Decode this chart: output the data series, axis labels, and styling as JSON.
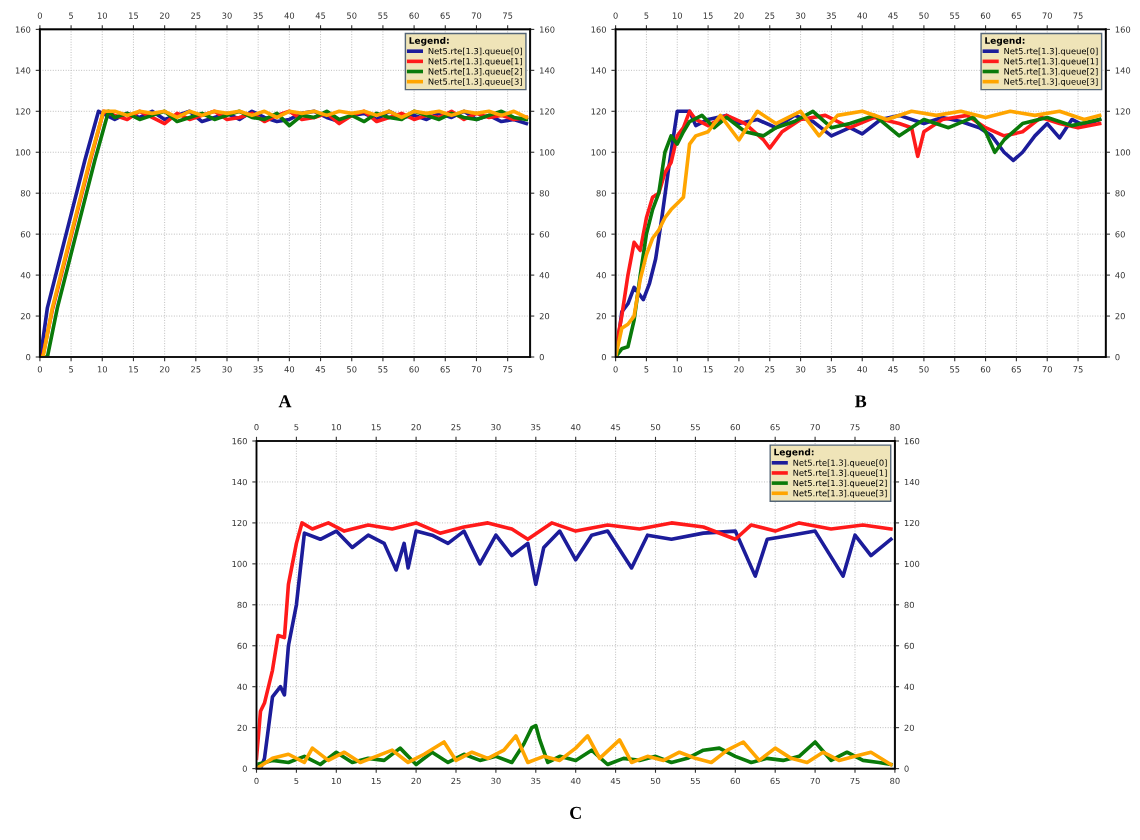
{
  "chart_data": [
    {
      "type": "line",
      "title": "A",
      "legend_title": "Legend:",
      "legend": "top right",
      "grid": true,
      "xlim": [
        0,
        78.6
      ],
      "xticks": [
        0,
        5,
        10,
        15,
        20,
        25,
        30,
        35,
        40,
        45,
        50,
        55,
        60,
        65,
        70,
        75
      ],
      "x2lim": [
        0,
        78.6
      ],
      "x2ticks": [
        0,
        5,
        10,
        15,
        20,
        25,
        30,
        35,
        40,
        45,
        50,
        55,
        60,
        65,
        70,
        75
      ],
      "ylim": [
        0,
        160
      ],
      "yticks": [
        0,
        20,
        40,
        60,
        80,
        100,
        120,
        140,
        160
      ],
      "y2lim": [
        0,
        160
      ],
      "y2ticks": [
        0,
        20,
        40,
        60,
        80,
        100,
        120,
        140,
        160
      ],
      "series": [
        {
          "name": "Net5.rte[1.3].queue[0]",
          "color": "#1c1c9a",
          "x": [
            0,
            0.1,
            1.2,
            3.2,
            5.2,
            7.2,
            9.4,
            12,
            14,
            16,
            18,
            20,
            22,
            24,
            26,
            28,
            30,
            32,
            34,
            36,
            38,
            40,
            42,
            44,
            46,
            48,
            50,
            52,
            54,
            56,
            58,
            60,
            62,
            64,
            66,
            68,
            70,
            72,
            74,
            76,
            78
          ],
          "values": [
            0,
            0,
            24,
            48,
            72,
            96,
            120,
            116,
            119,
            117,
            120,
            116,
            118,
            120,
            115,
            117,
            119,
            116,
            120,
            117,
            115,
            116,
            119,
            120,
            117,
            115,
            118,
            119,
            116,
            120,
            117,
            118,
            116,
            119,
            117,
            120,
            116,
            118,
            115,
            116,
            114
          ]
        },
        {
          "name": "Net5.rte[1.3].queue[1]",
          "color": "#ff1a1a",
          "x": [
            0,
            0.5,
            2,
            4,
            6,
            8,
            10.2,
            12,
            14,
            16,
            18,
            20,
            22,
            24,
            26,
            28,
            30,
            32,
            34,
            36,
            38,
            40,
            42,
            44,
            46,
            48,
            50,
            52,
            54,
            56,
            58,
            60,
            62,
            64,
            66,
            68,
            70,
            72,
            74,
            76,
            78
          ],
          "values": [
            0,
            1,
            23,
            47,
            71,
            95,
            120,
            118,
            116,
            120,
            117,
            114,
            119,
            116,
            118,
            120,
            116,
            117,
            119,
            115,
            118,
            120,
            116,
            117,
            119,
            114,
            118,
            120,
            115,
            117,
            119,
            116,
            118,
            117,
            120,
            116,
            119,
            117,
            118,
            116,
            117
          ]
        },
        {
          "name": "Net5.rte[1.3].queue[2]",
          "color": "#0a7a0a",
          "x": [
            0,
            1.2,
            2.8,
            4.8,
            6.8,
            8.8,
            11,
            12,
            14,
            16,
            18,
            20,
            22,
            24,
            26,
            28,
            30,
            32,
            34,
            36,
            38,
            40,
            42,
            44,
            46,
            48,
            50,
            52,
            54,
            56,
            58,
            60,
            62,
            64,
            66,
            68,
            70,
            72,
            74,
            76,
            78
          ],
          "values": [
            0,
            0,
            24,
            48,
            72,
            96,
            120,
            117,
            119,
            116,
            118,
            120,
            115,
            117,
            119,
            116,
            118,
            120,
            117,
            116,
            119,
            113,
            118,
            117,
            120,
            116,
            118,
            115,
            119,
            117,
            116,
            120,
            118,
            116,
            119,
            117,
            116,
            118,
            120,
            117,
            116
          ]
        },
        {
          "name": "Net5.rte[1.3].queue[3]",
          "color": "#ffa500",
          "x": [
            0,
            0.5,
            2,
            4,
            6,
            8,
            10.2,
            12,
            14,
            16,
            18,
            20,
            22,
            24,
            26,
            28,
            30,
            32,
            34,
            36,
            38,
            40,
            42,
            44,
            46,
            48,
            50,
            52,
            54,
            56,
            58,
            60,
            62,
            64,
            66,
            68,
            70,
            72,
            74,
            76,
            78
          ],
          "values": [
            0,
            0,
            24,
            48,
            72,
            96,
            120,
            120,
            118,
            120,
            119,
            120,
            117,
            120,
            118,
            120,
            119,
            120,
            118,
            120,
            117,
            120,
            119,
            120,
            118,
            120,
            119,
            120,
            118,
            120,
            117,
            120,
            119,
            120,
            118,
            120,
            119,
            120,
            118,
            120,
            117
          ]
        }
      ]
    },
    {
      "type": "line",
      "title": "B",
      "legend_title": "Legend:",
      "legend": "top right",
      "grid": true,
      "xlim": [
        0,
        79.5
      ],
      "xticks": [
        0,
        5,
        10,
        15,
        20,
        25,
        30,
        35,
        40,
        45,
        50,
        55,
        60,
        65,
        70,
        75
      ],
      "x2lim": [
        0,
        79.5
      ],
      "x2ticks": [
        0,
        5,
        10,
        15,
        20,
        25,
        30,
        35,
        40,
        45,
        50,
        55,
        60,
        65,
        70,
        75
      ],
      "ylim": [
        0,
        160
      ],
      "yticks": [
        0,
        20,
        40,
        60,
        80,
        100,
        120,
        140,
        160
      ],
      "y2lim": [
        0,
        160
      ],
      "y2ticks": [
        0,
        20,
        40,
        60,
        80,
        100,
        120,
        140,
        160
      ],
      "series": [
        {
          "name": "Net5.rte[1.3].queue[0]",
          "color": "#1c1c9a",
          "x": [
            0,
            0.5,
            1,
            2,
            3,
            4,
            4.5,
            5.5,
            6.5,
            7.5,
            8.5,
            9.5,
            10,
            12,
            13,
            15,
            18,
            20,
            23,
            26,
            29,
            32,
            35,
            38,
            40,
            43,
            46,
            50,
            53,
            56,
            59,
            61,
            63,
            64.5,
            66,
            68,
            70,
            72,
            74,
            76,
            78.5
          ],
          "values": [
            0,
            10,
            22,
            26,
            34,
            30,
            28,
            36,
            48,
            68,
            90,
            110,
            120,
            120,
            113,
            116,
            118,
            114,
            116,
            112,
            118,
            115,
            108,
            112,
            109,
            116,
            118,
            114,
            117,
            115,
            112,
            108,
            100,
            96,
            100,
            108,
            114,
            107,
            116,
            113,
            116
          ]
        },
        {
          "name": "Net5.rte[1.3].queue[1]",
          "color": "#ff1a1a",
          "x": [
            0,
            0.5,
            1,
            2,
            3,
            4,
            5,
            6,
            7,
            8,
            9,
            10,
            11,
            12,
            13,
            15,
            18,
            21,
            24,
            25,
            27,
            30,
            34,
            38,
            42,
            46,
            48,
            49,
            50,
            53,
            57,
            60,
            63,
            66,
            69,
            72,
            75,
            78.5
          ],
          "values": [
            0,
            12,
            20,
            40,
            56,
            52,
            68,
            78,
            80,
            90,
            95,
            108,
            112,
            120,
            116,
            113,
            118,
            114,
            106,
            102,
            110,
            116,
            118,
            112,
            117,
            114,
            112,
            98,
            110,
            116,
            118,
            112,
            108,
            110,
            117,
            114,
            112,
            114
          ]
        },
        {
          "name": "Net5.rte[1.3].queue[2]",
          "color": "#0a7a0a",
          "x": [
            0,
            1,
            2,
            3,
            4,
            5,
            6,
            7,
            8,
            9,
            10,
            11,
            12,
            14,
            16,
            18,
            21,
            24,
            26,
            29,
            32,
            35,
            38,
            42,
            46,
            50,
            54,
            58,
            60,
            61.5,
            63,
            66,
            70,
            74,
            78.5
          ],
          "values": [
            0,
            4,
            5,
            18,
            40,
            60,
            72,
            80,
            100,
            108,
            104,
            110,
            115,
            118,
            112,
            117,
            110,
            108,
            112,
            115,
            120,
            112,
            114,
            118,
            108,
            116,
            112,
            117,
            110,
            100,
            106,
            114,
            117,
            113,
            116
          ]
        },
        {
          "name": "Net5.rte[1.3].queue[3]",
          "color": "#ffa500",
          "x": [
            0,
            1,
            2,
            3,
            4,
            5,
            6,
            7,
            8,
            9,
            10,
            11,
            12,
            13,
            15,
            17,
            20,
            23,
            26,
            30,
            33,
            36,
            40,
            44,
            48,
            52,
            56,
            60,
            64,
            68,
            72,
            76,
            78.5
          ],
          "values": [
            0,
            14,
            16,
            20,
            38,
            50,
            58,
            62,
            68,
            72,
            75,
            78,
            104,
            108,
            110,
            118,
            106,
            120,
            114,
            120,
            108,
            118,
            120,
            116,
            120,
            118,
            120,
            117,
            120,
            118,
            120,
            116,
            118
          ]
        }
      ]
    },
    {
      "type": "line",
      "title": "C",
      "legend_title": "Legend:",
      "legend": "top right",
      "grid": true,
      "xlim": [
        0,
        80
      ],
      "xticks": [
        0,
        5,
        10,
        15,
        20,
        25,
        30,
        35,
        40,
        45,
        50,
        55,
        60,
        65,
        70,
        75,
        80
      ],
      "x2lim": [
        0,
        80
      ],
      "x2ticks": [
        0,
        5,
        10,
        15,
        20,
        25,
        30,
        35,
        40,
        45,
        50,
        55,
        60,
        65,
        70,
        75,
        80
      ],
      "ylim": [
        0,
        160
      ],
      "yticks": [
        0,
        20,
        40,
        60,
        80,
        100,
        120,
        140,
        160
      ],
      "y2lim": [
        0,
        160
      ],
      "y2ticks": [
        0,
        20,
        40,
        60,
        80,
        100,
        120,
        140,
        160
      ],
      "series": [
        {
          "name": "Net5.rte[1.3].queue[0]",
          "color": "#1c1c9a",
          "x": [
            0,
            0.5,
            1,
            1.5,
            2,
            3,
            3.5,
            4,
            5,
            6,
            8,
            10,
            12,
            14,
            16,
            17.5,
            18.5,
            19,
            20,
            22,
            24,
            26,
            28,
            30,
            32,
            34,
            35,
            36,
            38,
            40,
            42,
            44,
            47,
            49,
            52,
            56,
            60,
            62.5,
            64,
            67,
            70,
            73.5,
            75,
            77,
            79.5
          ],
          "values": [
            2,
            0,
            5,
            20,
            35,
            40,
            36,
            60,
            80,
            115,
            112,
            116,
            108,
            114,
            110,
            97,
            110,
            98,
            116,
            114,
            110,
            116,
            100,
            114,
            104,
            110,
            90,
            108,
            116,
            102,
            114,
            116,
            98,
            114,
            112,
            115,
            116,
            94,
            112,
            114,
            116,
            94,
            114,
            104,
            112
          ]
        },
        {
          "name": "Net5.rte[1.3].queue[1]",
          "color": "#ff1a1a",
          "x": [
            0,
            0.5,
            1,
            2,
            2.7,
            3.5,
            4,
            5,
            5.7,
            7,
            9,
            11,
            14,
            17,
            20,
            23,
            26,
            29,
            32,
            34,
            37,
            40,
            44,
            48,
            52,
            56,
            60,
            62,
            65,
            68,
            72,
            76,
            79.5
          ],
          "values": [
            5,
            28,
            32,
            48,
            65,
            64,
            90,
            110,
            120,
            117,
            120,
            116,
            119,
            117,
            120,
            115,
            118,
            120,
            117,
            112,
            120,
            116,
            119,
            117,
            120,
            118,
            112,
            119,
            116,
            120,
            117,
            119,
            117
          ]
        },
        {
          "name": "Net5.rte[1.3].queue[2]",
          "color": "#0a7a0a",
          "x": [
            0,
            2,
            4,
            6,
            8,
            10,
            12,
            14,
            16,
            18,
            20,
            22,
            24,
            26,
            28,
            30,
            32,
            33.5,
            34.5,
            35,
            35.5,
            36.5,
            38,
            40,
            42,
            44,
            46,
            48,
            50,
            52,
            54,
            56,
            58,
            60,
            62,
            64,
            66,
            68,
            70,
            72,
            74,
            76,
            78,
            79.5
          ],
          "values": [
            2,
            4,
            3,
            6,
            2,
            8,
            3,
            5,
            4,
            10,
            2,
            8,
            3,
            7,
            4,
            6,
            3,
            12,
            20,
            21,
            14,
            3,
            6,
            4,
            9,
            2,
            5,
            4,
            6,
            3,
            5,
            9,
            10,
            6,
            3,
            5,
            4,
            6,
            13,
            4,
            8,
            4,
            3,
            2
          ]
        },
        {
          "name": "Net5.rte[1.3].queue[3]",
          "color": "#ffa500",
          "x": [
            0,
            2,
            4,
            6,
            7,
            9,
            11,
            13,
            15,
            17,
            19,
            21,
            23.5,
            25,
            27,
            29,
            31,
            32.5,
            34,
            36,
            38,
            40,
            41.5,
            43,
            45.5,
            47,
            49,
            51,
            53,
            55,
            57,
            59,
            61,
            63,
            65,
            67,
            69,
            71,
            73,
            75,
            77,
            79.5
          ],
          "values": [
            0,
            5,
            7,
            3,
            10,
            4,
            8,
            3,
            6,
            9,
            3,
            7,
            13,
            4,
            8,
            5,
            9,
            16,
            3,
            6,
            4,
            10,
            16,
            5,
            14,
            3,
            6,
            4,
            8,
            5,
            3,
            9,
            13,
            4,
            10,
            5,
            3,
            8,
            4,
            6,
            8,
            2
          ]
        }
      ]
    }
  ]
}
